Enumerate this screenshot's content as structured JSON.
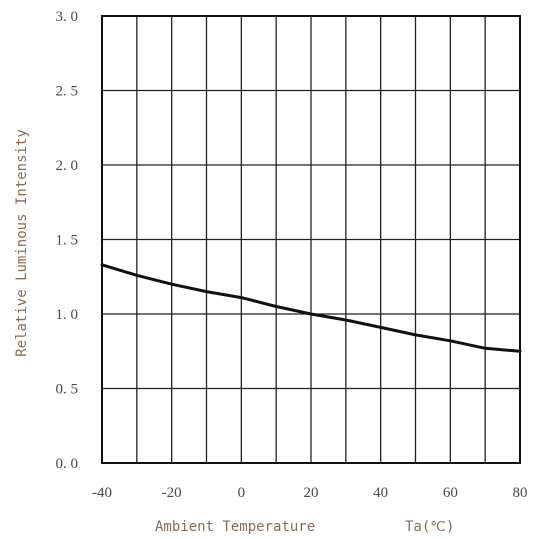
{
  "chart_data": {
    "type": "line",
    "xlabel": "Ambient Temperature",
    "xunit": "Ta(℃)",
    "ylabel": "Relative Luminous Intensity",
    "xlim": [
      -40,
      80
    ],
    "ylim": [
      0,
      3
    ],
    "x_ticks": [
      -40,
      -30,
      -20,
      -10,
      0,
      10,
      20,
      30,
      40,
      50,
      60,
      70,
      80
    ],
    "x_tick_labels": [
      "-40",
      "",
      "-20",
      "",
      "0",
      "",
      "20",
      "",
      "40",
      "",
      "60",
      "",
      "80"
    ],
    "y_ticks": [
      0,
      0.5,
      1.0,
      1.5,
      2.0,
      2.5,
      3.0
    ],
    "y_tick_labels": [
      "0. 0",
      "0. 5",
      "1. 0",
      "1. 5",
      "2. 0",
      "2. 5",
      "3. 0"
    ],
    "grid": true,
    "series": [
      {
        "x": [
          -40,
          -30,
          -20,
          -10,
          0,
          10,
          20,
          30,
          40,
          50,
          60,
          70,
          80
        ],
        "y": [
          1.33,
          1.26,
          1.2,
          1.15,
          1.11,
          1.05,
          1.0,
          0.96,
          0.91,
          0.86,
          0.82,
          0.77,
          0.75
        ]
      }
    ],
    "line_color": "#111111",
    "grid_color": "#222222"
  }
}
